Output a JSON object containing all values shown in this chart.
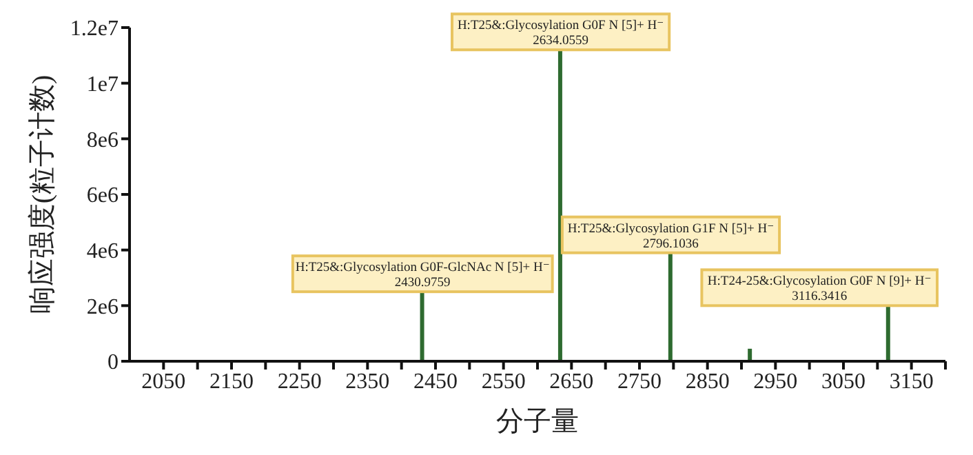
{
  "chart_data": {
    "type": "bar",
    "xlabel": "分子量",
    "ylabel": "响应强度(粒子计数)",
    "x": [
      2430.9759,
      2634.0559,
      2796.1036,
      2913,
      3116.3416
    ],
    "values": [
      2500000,
      11200000,
      3900000,
      450000,
      2000000
    ],
    "colors": [
      "#2e6b30",
      "#2e6b30",
      "#2e6b30",
      "#2e6b30",
      "#2e6b30"
    ],
    "xlim": [
      2000,
      3200
    ],
    "xticks": [
      2050,
      {
        "value": 2100,
        "label": null
      },
      2150,
      {
        "value": 2200,
        "label": null
      },
      2250,
      {
        "value": 2300,
        "label": null
      },
      2350,
      {
        "value": 2400,
        "label": null
      },
      2450,
      {
        "value": 2500,
        "label": null
      },
      2550,
      {
        "value": 2600,
        "label": null
      },
      2650,
      {
        "value": 2700,
        "label": null
      },
      2750,
      {
        "value": 2800,
        "label": null
      },
      2850,
      {
        "value": 2900,
        "label": null
      },
      2950,
      {
        "value": 3000,
        "label": null
      },
      3050,
      {
        "value": 3100,
        "label": null
      },
      3150,
      {
        "value": 3200,
        "label": null
      }
    ],
    "ylim": [
      0,
      12000000
    ],
    "yticks": [
      0,
      {
        "value": 2000000,
        "label": "2e6"
      },
      {
        "value": 4000000,
        "label": "4e6"
      },
      {
        "value": 6000000,
        "label": "6e6"
      },
      {
        "value": 8000000,
        "label": "8e6"
      },
      {
        "value": 10000000,
        "label": "1e7"
      },
      {
        "value": 12000000,
        "label": "1.2e7"
      }
    ],
    "grid": false,
    "legend": false,
    "annotations": [
      {
        "text": "H:T25&:Glycosylation G0F-GlcNAc N [5]+ H⁻\n2430.9759",
        "x": 2430.9759,
        "y": 2500000
      },
      {
        "text": "H:T25&:Glycosylation G0F N [5]+ H⁻\n2634.0559",
        "x": 2634.0559,
        "y": 11200000
      },
      {
        "text": "H:T25&:Glycosylation G1F N [5]+ H⁻\n2796.1036",
        "x": 2796.1036,
        "y": 3900000
      },
      {
        "text": "H:T24-25&:Glycosylation G0F N [9]+ H⁻\n3116.3416",
        "x": 3116.3416,
        "y": 2000000
      }
    ]
  }
}
